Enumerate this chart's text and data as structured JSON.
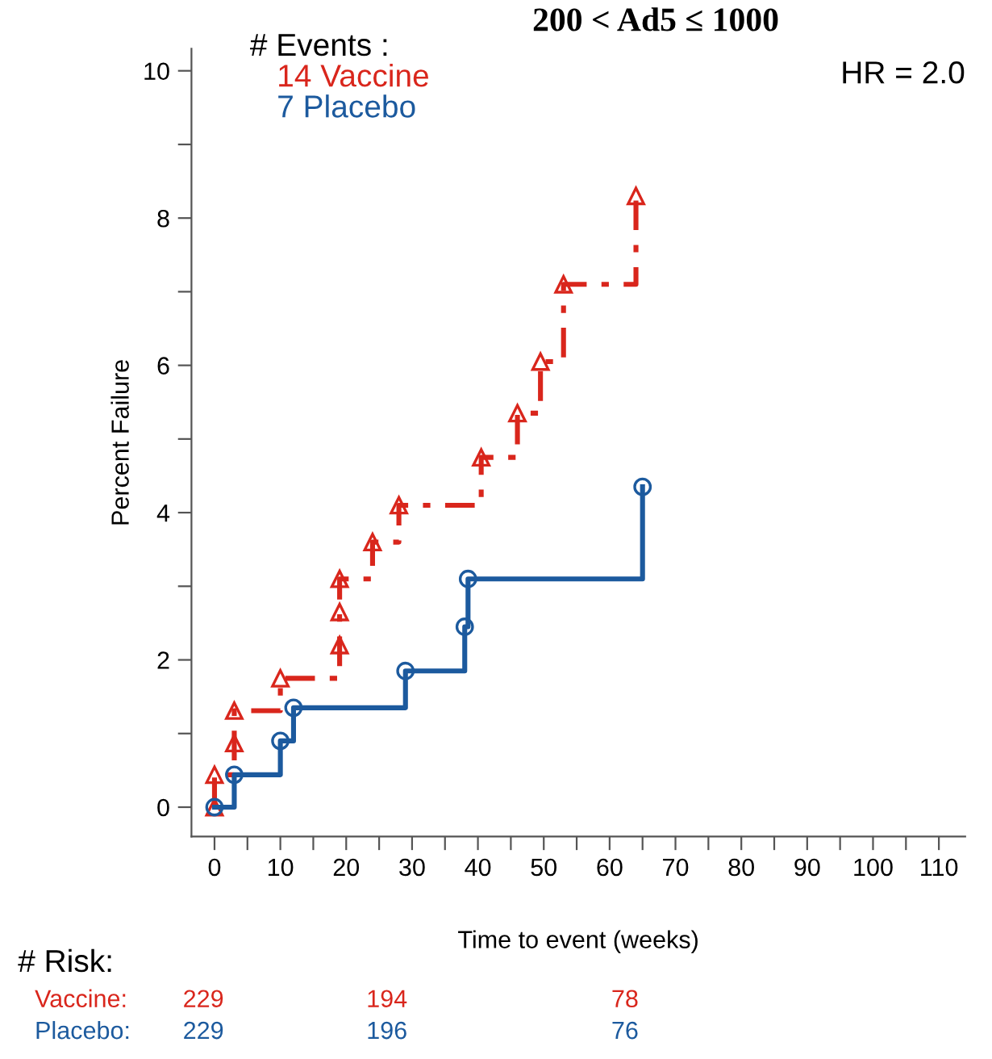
{
  "chart_data": {
    "type": "step",
    "title": "200 < Ad5 ≤ 1000",
    "xlabel": "Time to event (weeks)",
    "ylabel": "Percent Failure",
    "legend_title": "# Events :",
    "legend": "top left",
    "series": [
      {
        "name": "14 Vaccine",
        "color": "#d9261c",
        "marker": "triangle",
        "line_style": "dashed",
        "x": [
          0,
          0,
          3,
          3,
          10,
          19,
          19,
          19,
          24,
          28,
          40.5,
          46,
          49.5,
          53,
          64
        ],
        "values": [
          0,
          0.44,
          0.87,
          1.31,
          1.75,
          2.2,
          2.65,
          3.1,
          3.6,
          4.1,
          4.75,
          5.35,
          6.05,
          7.1,
          8.3
        ]
      },
      {
        "name": "7 Placebo",
        "color": "#1c5a9e",
        "marker": "circle",
        "line_style": "solid",
        "x": [
          0,
          3,
          10,
          12,
          29,
          38,
          38.5,
          65
        ],
        "values": [
          0,
          0.44,
          0.9,
          1.35,
          1.85,
          2.45,
          3.1,
          4.35
        ]
      }
    ],
    "xlim": [
      -3.5,
      114
    ],
    "ylim": [
      -0.4,
      10.3
    ],
    "xticks": [
      0,
      {
        "value": 5,
        "label": null
      },
      10,
      {
        "value": 15,
        "label": null
      },
      20,
      {
        "value": 25,
        "label": null
      },
      30,
      {
        "value": 35,
        "label": null
      },
      40,
      {
        "value": 45,
        "label": null
      },
      50,
      {
        "value": 55,
        "label": null
      },
      60,
      {
        "value": 65,
        "label": null
      },
      70,
      {
        "value": 75,
        "label": null
      },
      80,
      {
        "value": 85,
        "label": null
      },
      90,
      {
        "value": 95,
        "label": null
      },
      100,
      {
        "value": 105,
        "label": null
      },
      110
    ],
    "yticks": [
      0,
      {
        "value": 1,
        "label": null
      },
      2,
      {
        "value": 3,
        "label": null
      },
      4,
      {
        "value": 5,
        "label": null
      },
      6,
      {
        "value": 7,
        "label": null
      },
      8,
      {
        "value": 9,
        "label": null
      },
      10
    ],
    "grid": false,
    "annotations": [
      "HR = 2.0",
      "# Risk:",
      "Vaccine:",
      "229",
      "194",
      "78",
      "Placebo:",
      "229",
      "196",
      "76"
    ]
  }
}
